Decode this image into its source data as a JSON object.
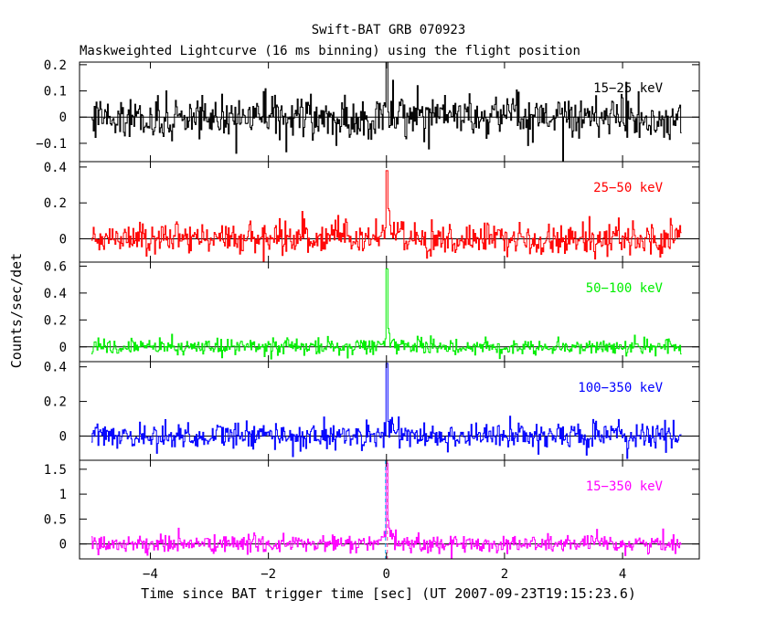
{
  "chart_data": {
    "type": "line",
    "title": "Swift-BAT GRB 070923",
    "subtitle": "Maskweighted Lightcurve (16 ms binning) using the flight position",
    "xlabel": "Time since BAT trigger time [sec] (UT 2007-09-23T19:15:23.6)",
    "ylabel": "Counts/sec/det",
    "xlim": [
      -5.2,
      5.3
    ],
    "x_ticks": [
      -4,
      -2,
      0,
      2,
      4
    ],
    "x_tick_labels": [
      "−4",
      "−2",
      "0",
      "2",
      "4"
    ],
    "bin_width_sec": 0.016,
    "data_x_range": [
      -5.0,
      5.0
    ],
    "panels": [
      {
        "band": "15−25 keV",
        "color": "#000000",
        "ylim": [
          -0.17,
          0.21
        ],
        "y_ticks": [
          -0.1,
          0,
          0.1,
          0.2
        ],
        "y_tick_labels": [
          "−0.1",
          "0",
          "0.1",
          "0.2"
        ],
        "noise_sigma": 0.04,
        "peak": {
          "t": 0.0,
          "value": 0.21
        }
      },
      {
        "band": "25−50 keV",
        "color": "#ff0000",
        "ylim": [
          -0.13,
          0.43
        ],
        "y_ticks": [
          0,
          0.2,
          0.4
        ],
        "y_tick_labels": [
          "0",
          "0.2",
          "0.4"
        ],
        "noise_sigma": 0.045,
        "peak": {
          "t": 0.0,
          "value": 0.38
        }
      },
      {
        "band": "50−100 keV",
        "color": "#00ee00",
        "ylim": [
          -0.11,
          0.63
        ],
        "y_ticks": [
          0,
          0.2,
          0.4,
          0.6
        ],
        "y_tick_labels": [
          "0",
          "0.2",
          "0.4",
          "0.6"
        ],
        "noise_sigma": 0.03,
        "peak": {
          "t": 0.0,
          "value": 0.58
        }
      },
      {
        "band": "100−350 keV",
        "color": "#0000ff",
        "ylim": [
          -0.14,
          0.43
        ],
        "y_ticks": [
          0,
          0.2,
          0.4
        ],
        "y_tick_labels": [
          "0",
          "0.2",
          "0.4"
        ],
        "noise_sigma": 0.04,
        "peak": {
          "t": 0.0,
          "value": 0.42
        }
      },
      {
        "band": "15−350 keV",
        "color": "#ff00ff",
        "ylim": [
          -0.3,
          1.68
        ],
        "y_ticks": [
          0,
          0.5,
          1,
          1.5
        ],
        "y_tick_labels": [
          "0",
          "0.5",
          "1",
          "1.5"
        ],
        "noise_sigma": 0.09,
        "peak": {
          "t": 0.0,
          "value": 1.62
        }
      }
    ]
  }
}
